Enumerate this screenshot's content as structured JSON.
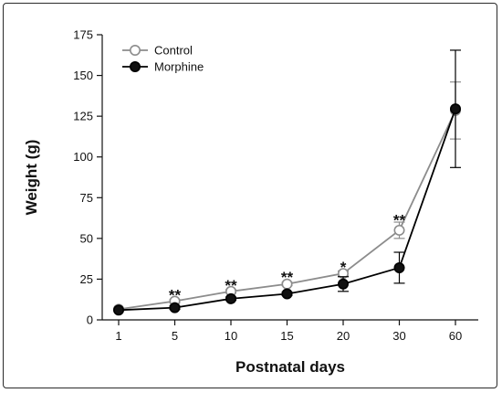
{
  "chart_data": {
    "type": "line",
    "title": "",
    "xlabel": "Postnatal days",
    "ylabel": "Weight (g)",
    "categories": [
      "1",
      "5",
      "10",
      "15",
      "20",
      "30",
      "60"
    ],
    "ylim": [
      0,
      175
    ],
    "yticks": [
      0,
      25,
      50,
      75,
      100,
      125,
      150,
      175
    ],
    "grid": false,
    "legend": "top-left",
    "series": [
      {
        "name": "Control",
        "marker": "open-circle",
        "line_color": "#8c8c8c",
        "marker_edge": "#8c8c8c",
        "marker_fill": "#ffffff",
        "values": [
          6.5,
          11.5,
          17.5,
          22,
          28.5,
          55,
          128.5
        ],
        "errors": [
          0.5,
          1,
          1,
          1,
          1.5,
          5,
          17.5
        ]
      },
      {
        "name": "Morphine",
        "marker": "filled-circle",
        "line_color": "#000000",
        "marker_edge": "#000000",
        "marker_fill": "#111111",
        "values": [
          6,
          7.5,
          13,
          16,
          22,
          32,
          129.5
        ],
        "errors": [
          0.5,
          1,
          1,
          1,
          4.5,
          9.5,
          36
        ]
      }
    ],
    "annotations": [
      {
        "category": "5",
        "text": "**",
        "y": 16
      },
      {
        "category": "10",
        "text": "**",
        "y": 22
      },
      {
        "category": "15",
        "text": "**",
        "y": 27
      },
      {
        "category": "20",
        "text": "*",
        "y": 33
      },
      {
        "category": "30",
        "text": "**",
        "y": 62
      }
    ]
  }
}
